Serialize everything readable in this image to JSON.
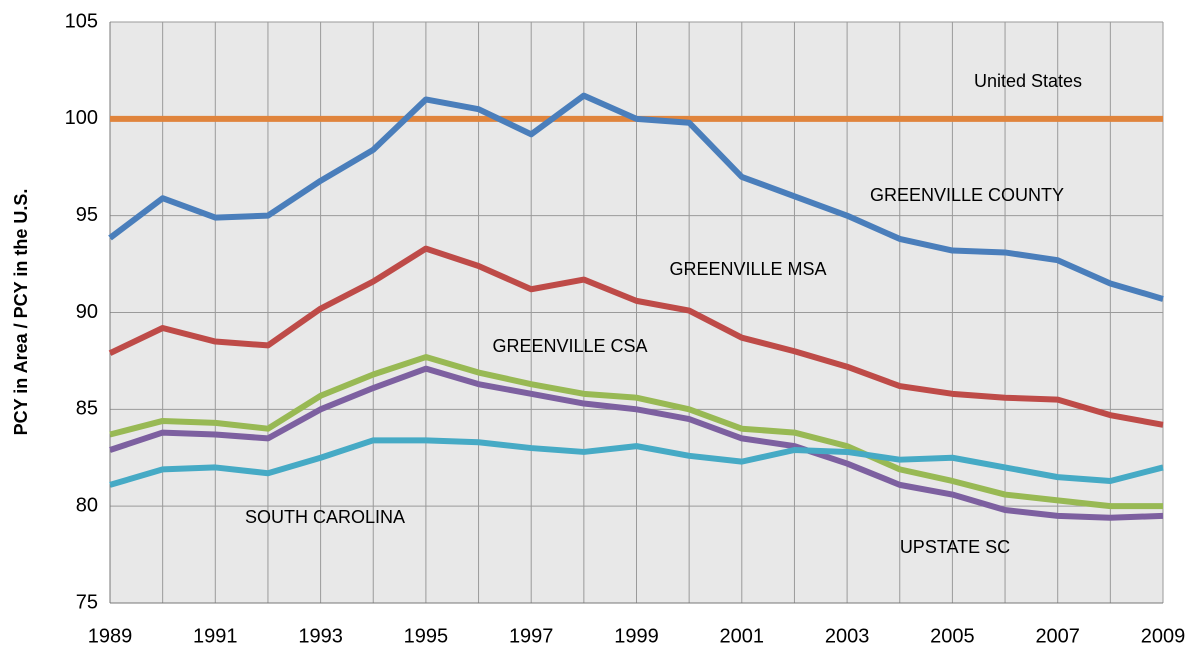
{
  "chart_data": {
    "type": "line",
    "y_label": "PCY in Area / PCY in the U.S.",
    "x": [
      1989,
      1990,
      1991,
      1992,
      1993,
      1994,
      1995,
      1996,
      1997,
      1998,
      1999,
      2000,
      2001,
      2002,
      2003,
      2004,
      2005,
      2006,
      2007,
      2008,
      2009
    ],
    "series": [
      {
        "name": "United States",
        "color": "#e0843c",
        "values": [
          100,
          100,
          100,
          100,
          100,
          100,
          100,
          100,
          100,
          100,
          100,
          100,
          100,
          100,
          100,
          100,
          100,
          100,
          100,
          100,
          100
        ]
      },
      {
        "name": "GREENVILLE COUNTY",
        "color": "#4a7ebb",
        "values": [
          93.85,
          95.9,
          94.9,
          95.0,
          96.8,
          98.4,
          101.0,
          100.5,
          99.2,
          101.2,
          100.0,
          99.8,
          97.0,
          96.0,
          95.0,
          93.8,
          93.2,
          93.1,
          92.7,
          91.5,
          90.7
        ]
      },
      {
        "name": "GREENVILLE MSA",
        "color": "#be4b48",
        "values": [
          87.9,
          89.2,
          88.5,
          88.3,
          90.2,
          91.6,
          93.3,
          92.4,
          91.2,
          91.7,
          90.6,
          90.1,
          88.7,
          88.0,
          87.2,
          86.2,
          85.8,
          85.6,
          85.5,
          84.7,
          84.2
        ]
      },
      {
        "name": "GREENVILLE CSA",
        "color": "#98b954",
        "values": [
          83.7,
          84.4,
          84.3,
          84.0,
          85.7,
          86.8,
          87.7,
          86.9,
          86.3,
          85.8,
          85.6,
          85.0,
          84.0,
          83.8,
          83.1,
          81.9,
          81.3,
          80.6,
          80.3,
          80.0,
          80.0
        ]
      },
      {
        "name": "UPSTATE SC",
        "color": "#7d60a0",
        "values": [
          82.9,
          83.8,
          83.7,
          83.5,
          85.0,
          86.1,
          87.1,
          86.3,
          85.8,
          85.3,
          85.0,
          84.5,
          83.5,
          83.1,
          82.2,
          81.1,
          80.6,
          79.8,
          79.5,
          79.4,
          79.5
        ]
      },
      {
        "name": "SOUTH CAROLINA",
        "color": "#46aac5",
        "values": [
          81.1,
          81.9,
          82.0,
          81.7,
          82.5,
          83.4,
          83.4,
          83.3,
          83.0,
          82.8,
          83.1,
          82.6,
          82.3,
          82.9,
          82.8,
          82.4,
          82.5,
          82.0,
          81.5,
          81.3,
          82.0
        ]
      }
    ],
    "xlim": [
      1989,
      2009
    ],
    "xticks": [
      1989,
      1991,
      1993,
      1995,
      1997,
      1999,
      2001,
      2003,
      2005,
      2007,
      2009
    ],
    "xminor": [
      1990,
      1992,
      1994,
      1996,
      1998,
      2000,
      2002,
      2004,
      2006,
      2008
    ],
    "ylim": [
      75,
      105
    ],
    "yticks": [
      75,
      80,
      85,
      90,
      95,
      100,
      105
    ],
    "grid": true
  }
}
